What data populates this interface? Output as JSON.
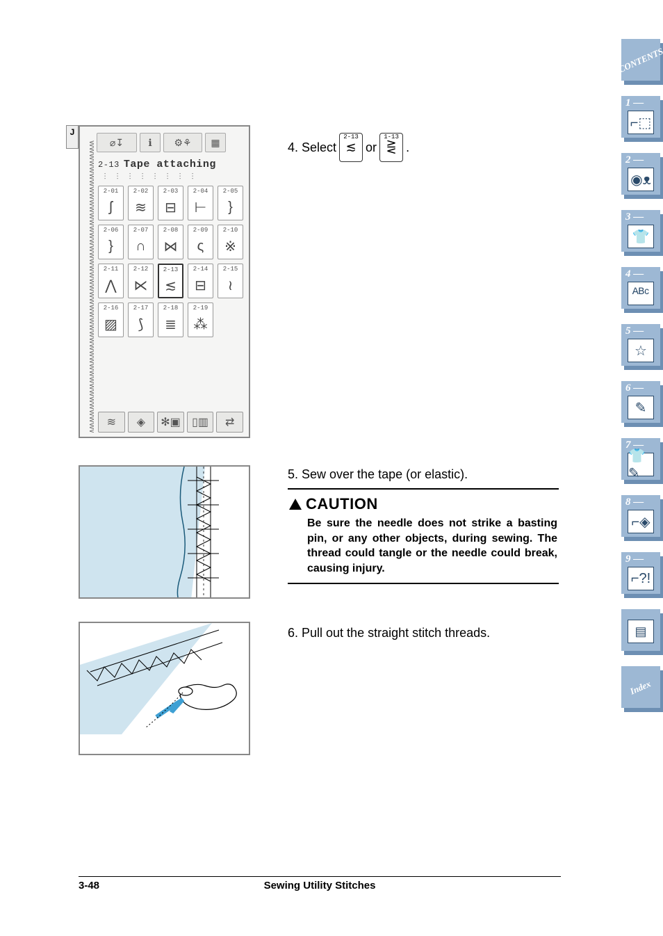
{
  "screen": {
    "j_badge": "J",
    "title_num": "2-13",
    "title_text": "Tape attaching",
    "toolbar_icons": [
      "⌀↧",
      "ℹ",
      "⚙⚘",
      "▦"
    ],
    "cells": [
      {
        "lbl": "2-01",
        "glyph": "ʃ"
      },
      {
        "lbl": "2-02",
        "glyph": "≋"
      },
      {
        "lbl": "2-03",
        "glyph": "⊟"
      },
      {
        "lbl": "2-04",
        "glyph": "⊢"
      },
      {
        "lbl": "2-05",
        "glyph": "}"
      },
      {
        "lbl": "2-06",
        "glyph": "}"
      },
      {
        "lbl": "2-07",
        "glyph": "∩"
      },
      {
        "lbl": "2-08",
        "glyph": "⋈"
      },
      {
        "lbl": "2-09",
        "glyph": "ς"
      },
      {
        "lbl": "2-10",
        "glyph": "※"
      },
      {
        "lbl": "2-11",
        "glyph": "⋀"
      },
      {
        "lbl": "2-12",
        "glyph": "⋉"
      },
      {
        "lbl": "2-13",
        "glyph": "≲",
        "selected": true
      },
      {
        "lbl": "2-14",
        "glyph": "⊟"
      },
      {
        "lbl": "2-15",
        "glyph": "≀"
      },
      {
        "lbl": "2-16",
        "glyph": "▨"
      },
      {
        "lbl": "2-17",
        "glyph": "⟆"
      },
      {
        "lbl": "2-18",
        "glyph": "≣"
      },
      {
        "lbl": "2-19",
        "glyph": "⁂"
      }
    ],
    "bottom_icons": [
      "≋",
      "◈",
      "✻▣",
      "▯▥",
      "⇄"
    ]
  },
  "step4": {
    "prefix": "4.  Select",
    "btn1_lbl": "2-13",
    "btn1_glyph": "≲",
    "mid": "or",
    "btn2_lbl": "1-13",
    "btn2_glyph": "⋛",
    "suffix": "."
  },
  "step5": {
    "text": "5.   Sew over the tape (or elastic)."
  },
  "caution": {
    "head": "CAUTION",
    "body": "Be sure the needle does not strike a basting pin, or any other objects, during sewing. The thread could tangle or the needle could break, causing injury."
  },
  "step6": {
    "text": "6.   Pull out the straight stitch threads."
  },
  "footer": {
    "page": "3-48",
    "title": "Sewing Utility Stitches"
  },
  "sidebar": {
    "contents": "CONTENTS",
    "tabs": [
      {
        "num": "1 —",
        "glyph": "⌐⬚"
      },
      {
        "num": "2 —",
        "glyph": "◉ᴥ"
      },
      {
        "num": "3 —",
        "glyph": "👕"
      },
      {
        "num": "4 —",
        "glyph": "ᴬᴮᶜ"
      },
      {
        "num": "5 —",
        "glyph": "☆"
      },
      {
        "num": "6 —",
        "glyph": "✎"
      },
      {
        "num": "7 —",
        "glyph": "👕✎"
      },
      {
        "num": "8 —",
        "glyph": "⌐◈"
      },
      {
        "num": "9 —",
        "glyph": "⌐?!"
      }
    ],
    "blank_glyph": "▤",
    "index": "Index"
  },
  "colors": {
    "tab_face": "#9db8d4",
    "tab_shadow": "#6d8fb3",
    "fabric": "#cfe4ef"
  }
}
